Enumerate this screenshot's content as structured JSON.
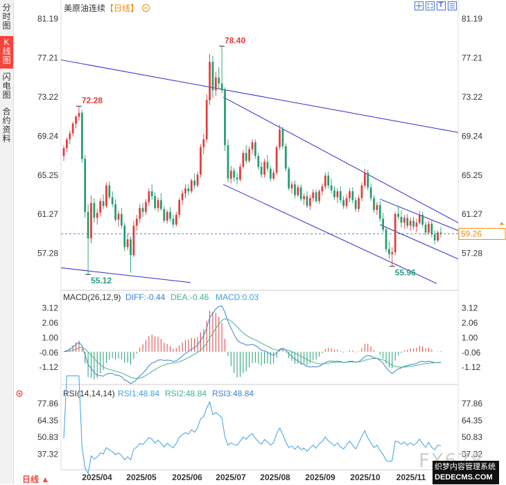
{
  "sidebar": {
    "tabs": [
      {
        "label": "分\n时\n图"
      },
      {
        "label": "K\n线\n图"
      },
      {
        "label": "闪\n电\n图"
      },
      {
        "label": "合\n约\n资\n料"
      }
    ]
  },
  "header": {
    "symbol": "美原油连续",
    "period": "【日线】",
    "zoom_icon": "plus-circle-icon"
  },
  "toolbar": {
    "icons": [
      "move-icon",
      "fit-icon",
      "text-icon",
      "tools-icon"
    ]
  },
  "macd_header": {
    "title": "MACD(26,12,9)",
    "diff": "DIFF:-0.44",
    "dea": "DEA:-0.46",
    "macd": "MACD:0.03"
  },
  "rsi_header": {
    "title": "RSI(14,14,14)",
    "rsi1": "RSI1:48.84",
    "rsi2": "RSI2:48.84",
    "rsi3": "RSI3:48.84"
  },
  "footer": {
    "timeframe": "日线 ▲"
  },
  "watermark": {
    "brand": "FX678",
    "site_name": "织梦内容管理系统",
    "site_url": "DEDECMS.COM"
  },
  "colors": {
    "up": "#e23b3b",
    "down": "#1f9e6e",
    "channel": "#2b2bd3",
    "diff": "#3a7fd6",
    "dea": "#40b48a",
    "rsi": "#3ba0dd",
    "current": "#f08c00"
  },
  "chart_data": [
    {
      "type": "candlestick",
      "title": "美原油连续",
      "period": "日线",
      "y_ticks": [
        "81.19",
        "77.21",
        "73.22",
        "69.24",
        "65.25",
        "61.27",
        "57.28"
      ],
      "ylim": [
        54.0,
        82.4
      ],
      "x_ticks": [
        "2025/04",
        "2025/05",
        "2025/06",
        "2025/07",
        "2025/08",
        "2025/09",
        "2025/10",
        "2025/11"
      ],
      "last_price": "59.26",
      "annotations": [
        {
          "label": "72.28",
          "kind": "high",
          "date": "2025/04/02"
        },
        {
          "label": "78.40",
          "kind": "high",
          "date": "2025/06/23"
        },
        {
          "label": "55.12",
          "kind": "low",
          "date": "2025/04/09"
        },
        {
          "label": "55.96",
          "kind": "low",
          "date": "2025/10/20"
        }
      ],
      "candles": [
        {
          "o": 67.2,
          "h": 68.3,
          "l": 66.7,
          "c": 68.0
        },
        {
          "o": 68.0,
          "h": 69.1,
          "l": 67.6,
          "c": 68.9
        },
        {
          "o": 68.9,
          "h": 69.8,
          "l": 68.4,
          "c": 69.5
        },
        {
          "o": 69.5,
          "h": 70.7,
          "l": 69.2,
          "c": 70.5
        },
        {
          "o": 70.5,
          "h": 71.4,
          "l": 70.0,
          "c": 71.2
        },
        {
          "o": 71.2,
          "h": 72.28,
          "l": 70.8,
          "c": 71.6
        },
        {
          "o": 71.6,
          "h": 71.9,
          "l": 66.5,
          "c": 66.9
        },
        {
          "o": 66.9,
          "h": 67.3,
          "l": 60.9,
          "c": 61.5
        },
        {
          "o": 61.5,
          "h": 62.3,
          "l": 55.12,
          "c": 58.8
        },
        {
          "o": 58.8,
          "h": 63.2,
          "l": 58.3,
          "c": 62.4
        },
        {
          "o": 62.4,
          "h": 62.9,
          "l": 60.4,
          "c": 60.9
        },
        {
          "o": 60.9,
          "h": 61.8,
          "l": 60.2,
          "c": 61.4
        },
        {
          "o": 61.4,
          "h": 62.9,
          "l": 61.0,
          "c": 62.6
        },
        {
          "o": 62.6,
          "h": 63.3,
          "l": 61.8,
          "c": 62.1
        },
        {
          "o": 62.1,
          "h": 64.5,
          "l": 61.9,
          "c": 64.2
        },
        {
          "o": 64.2,
          "h": 64.6,
          "l": 62.8,
          "c": 63.0
        },
        {
          "o": 63.0,
          "h": 63.6,
          "l": 62.0,
          "c": 62.3
        },
        {
          "o": 62.3,
          "h": 62.8,
          "l": 60.5,
          "c": 60.7
        },
        {
          "o": 60.7,
          "h": 61.6,
          "l": 60.0,
          "c": 61.3
        },
        {
          "o": 61.3,
          "h": 61.9,
          "l": 59.8,
          "c": 60.1
        },
        {
          "o": 60.1,
          "h": 60.4,
          "l": 57.5,
          "c": 57.9
        },
        {
          "o": 57.9,
          "h": 59.3,
          "l": 57.6,
          "c": 58.7
        },
        {
          "o": 58.7,
          "h": 59.0,
          "l": 55.3,
          "c": 57.1
        },
        {
          "o": 57.1,
          "h": 60.6,
          "l": 56.9,
          "c": 60.1
        },
        {
          "o": 60.1,
          "h": 61.2,
          "l": 59.6,
          "c": 60.8
        },
        {
          "o": 60.8,
          "h": 62.3,
          "l": 60.4,
          "c": 61.9
        },
        {
          "o": 61.9,
          "h": 62.4,
          "l": 61.0,
          "c": 61.5
        },
        {
          "o": 61.5,
          "h": 62.8,
          "l": 61.2,
          "c": 62.5
        },
        {
          "o": 62.5,
          "h": 63.9,
          "l": 62.1,
          "c": 63.6
        },
        {
          "o": 63.6,
          "h": 64.3,
          "l": 62.7,
          "c": 63.1
        },
        {
          "o": 63.1,
          "h": 63.5,
          "l": 61.7,
          "c": 61.9
        },
        {
          "o": 61.9,
          "h": 63.0,
          "l": 61.5,
          "c": 62.7
        },
        {
          "o": 62.7,
          "h": 63.4,
          "l": 61.6,
          "c": 61.8
        },
        {
          "o": 61.8,
          "h": 62.1,
          "l": 60.4,
          "c": 60.6
        },
        {
          "o": 60.6,
          "h": 61.7,
          "l": 60.3,
          "c": 61.5
        },
        {
          "o": 61.5,
          "h": 62.0,
          "l": 60.5,
          "c": 60.8
        },
        {
          "o": 60.8,
          "h": 61.2,
          "l": 59.9,
          "c": 60.2
        },
        {
          "o": 60.2,
          "h": 61.5,
          "l": 60.0,
          "c": 61.2
        },
        {
          "o": 61.2,
          "h": 62.9,
          "l": 60.9,
          "c": 62.7
        },
        {
          "o": 62.7,
          "h": 63.7,
          "l": 62.2,
          "c": 63.4
        },
        {
          "o": 63.4,
          "h": 64.3,
          "l": 62.9,
          "c": 63.9
        },
        {
          "o": 63.9,
          "h": 64.3,
          "l": 63.2,
          "c": 63.6
        },
        {
          "o": 63.6,
          "h": 64.9,
          "l": 63.4,
          "c": 64.7
        },
        {
          "o": 64.7,
          "h": 65.4,
          "l": 63.9,
          "c": 64.2
        },
        {
          "o": 64.2,
          "h": 65.6,
          "l": 64.0,
          "c": 65.3
        },
        {
          "o": 65.3,
          "h": 68.4,
          "l": 65.0,
          "c": 68.1
        },
        {
          "o": 68.1,
          "h": 69.5,
          "l": 67.4,
          "c": 68.9
        },
        {
          "o": 68.9,
          "h": 73.5,
          "l": 68.6,
          "c": 72.9
        },
        {
          "o": 72.9,
          "h": 77.6,
          "l": 72.4,
          "c": 76.8
        },
        {
          "o": 76.8,
          "h": 77.4,
          "l": 73.1,
          "c": 73.9
        },
        {
          "o": 73.9,
          "h": 75.8,
          "l": 73.3,
          "c": 75.2
        },
        {
          "o": 75.2,
          "h": 76.3,
          "l": 74.0,
          "c": 74.6
        },
        {
          "o": 74.6,
          "h": 78.4,
          "l": 73.6,
          "c": 73.9
        },
        {
          "o": 73.9,
          "h": 74.2,
          "l": 67.7,
          "c": 68.3
        },
        {
          "o": 68.3,
          "h": 68.9,
          "l": 64.5,
          "c": 64.9
        },
        {
          "o": 64.9,
          "h": 66.2,
          "l": 64.4,
          "c": 65.7
        },
        {
          "o": 65.7,
          "h": 66.0,
          "l": 64.6,
          "c": 65.0
        },
        {
          "o": 65.0,
          "h": 65.5,
          "l": 64.3,
          "c": 64.8
        },
        {
          "o": 64.8,
          "h": 66.4,
          "l": 64.6,
          "c": 66.1
        },
        {
          "o": 66.1,
          "h": 67.8,
          "l": 65.9,
          "c": 67.5
        },
        {
          "o": 67.5,
          "h": 68.3,
          "l": 66.4,
          "c": 66.7
        },
        {
          "o": 66.7,
          "h": 68.2,
          "l": 66.5,
          "c": 67.9
        },
        {
          "o": 67.9,
          "h": 68.9,
          "l": 67.4,
          "c": 68.6
        },
        {
          "o": 68.6,
          "h": 68.9,
          "l": 66.9,
          "c": 67.2
        },
        {
          "o": 67.2,
          "h": 67.5,
          "l": 65.8,
          "c": 66.1
        },
        {
          "o": 66.1,
          "h": 66.6,
          "l": 65.0,
          "c": 65.3
        },
        {
          "o": 65.3,
          "h": 66.9,
          "l": 65.0,
          "c": 66.6
        },
        {
          "o": 66.6,
          "h": 67.3,
          "l": 65.6,
          "c": 65.9
        },
        {
          "o": 65.9,
          "h": 66.2,
          "l": 64.6,
          "c": 64.9
        },
        {
          "o": 64.9,
          "h": 65.8,
          "l": 64.7,
          "c": 65.5
        },
        {
          "o": 65.5,
          "h": 68.3,
          "l": 65.3,
          "c": 68.1
        },
        {
          "o": 68.1,
          "h": 70.4,
          "l": 67.8,
          "c": 69.9
        },
        {
          "o": 69.9,
          "h": 70.2,
          "l": 67.9,
          "c": 68.2
        },
        {
          "o": 68.2,
          "h": 68.5,
          "l": 65.6,
          "c": 65.9
        },
        {
          "o": 65.9,
          "h": 66.1,
          "l": 63.7,
          "c": 63.9
        },
        {
          "o": 63.9,
          "h": 64.6,
          "l": 63.4,
          "c": 64.3
        },
        {
          "o": 64.3,
          "h": 64.7,
          "l": 62.9,
          "c": 63.2
        },
        {
          "o": 63.2,
          "h": 64.3,
          "l": 63.0,
          "c": 64.0
        },
        {
          "o": 64.0,
          "h": 64.3,
          "l": 62.6,
          "c": 62.8
        },
        {
          "o": 62.8,
          "h": 63.4,
          "l": 62.2,
          "c": 63.1
        },
        {
          "o": 63.1,
          "h": 63.6,
          "l": 61.9,
          "c": 62.1
        },
        {
          "o": 62.1,
          "h": 63.2,
          "l": 61.7,
          "c": 62.9
        },
        {
          "o": 62.9,
          "h": 63.8,
          "l": 62.5,
          "c": 63.5
        },
        {
          "o": 63.5,
          "h": 63.8,
          "l": 62.4,
          "c": 62.6
        },
        {
          "o": 62.6,
          "h": 63.8,
          "l": 62.3,
          "c": 63.6
        },
        {
          "o": 63.6,
          "h": 64.4,
          "l": 63.2,
          "c": 64.1
        },
        {
          "o": 64.1,
          "h": 65.5,
          "l": 63.8,
          "c": 65.2
        },
        {
          "o": 65.2,
          "h": 65.6,
          "l": 63.9,
          "c": 64.2
        },
        {
          "o": 64.2,
          "h": 64.9,
          "l": 63.4,
          "c": 63.7
        },
        {
          "o": 63.7,
          "h": 64.1,
          "l": 62.7,
          "c": 63.0
        },
        {
          "o": 63.0,
          "h": 63.9,
          "l": 62.4,
          "c": 63.6
        },
        {
          "o": 63.6,
          "h": 64.1,
          "l": 62.4,
          "c": 62.7
        },
        {
          "o": 62.7,
          "h": 63.1,
          "l": 61.8,
          "c": 62.1
        },
        {
          "o": 62.1,
          "h": 63.3,
          "l": 61.8,
          "c": 62.9
        },
        {
          "o": 62.9,
          "h": 63.9,
          "l": 62.5,
          "c": 63.6
        },
        {
          "o": 63.6,
          "h": 64.0,
          "l": 62.4,
          "c": 62.7
        },
        {
          "o": 62.7,
          "h": 63.0,
          "l": 61.5,
          "c": 61.8
        },
        {
          "o": 61.8,
          "h": 63.2,
          "l": 61.5,
          "c": 62.9
        },
        {
          "o": 62.9,
          "h": 64.5,
          "l": 62.6,
          "c": 64.2
        },
        {
          "o": 64.2,
          "h": 65.9,
          "l": 63.9,
          "c": 65.5
        },
        {
          "o": 65.5,
          "h": 65.8,
          "l": 63.7,
          "c": 64.0
        },
        {
          "o": 64.0,
          "h": 64.4,
          "l": 62.6,
          "c": 62.9
        },
        {
          "o": 62.9,
          "h": 63.2,
          "l": 61.4,
          "c": 61.7
        },
        {
          "o": 61.7,
          "h": 62.5,
          "l": 61.2,
          "c": 62.2
        },
        {
          "o": 62.2,
          "h": 62.6,
          "l": 60.5,
          "c": 60.8
        },
        {
          "o": 60.8,
          "h": 61.4,
          "l": 59.4,
          "c": 59.7
        },
        {
          "o": 59.7,
          "h": 60.0,
          "l": 57.4,
          "c": 57.7
        },
        {
          "o": 57.7,
          "h": 58.5,
          "l": 56.7,
          "c": 57.2
        },
        {
          "o": 57.2,
          "h": 57.9,
          "l": 55.96,
          "c": 57.4
        },
        {
          "o": 57.4,
          "h": 61.5,
          "l": 57.1,
          "c": 61.3
        },
        {
          "o": 61.3,
          "h": 62.1,
          "l": 60.7,
          "c": 61.0
        },
        {
          "o": 61.0,
          "h": 61.6,
          "l": 59.9,
          "c": 60.4
        },
        {
          "o": 60.4,
          "h": 61.2,
          "l": 59.8,
          "c": 60.9
        },
        {
          "o": 60.9,
          "h": 61.3,
          "l": 59.8,
          "c": 60.1
        },
        {
          "o": 60.1,
          "h": 60.9,
          "l": 59.6,
          "c": 60.6
        },
        {
          "o": 60.6,
          "h": 61.0,
          "l": 59.7,
          "c": 60.0
        },
        {
          "o": 60.0,
          "h": 60.8,
          "l": 59.4,
          "c": 60.4
        },
        {
          "o": 60.4,
          "h": 61.6,
          "l": 60.2,
          "c": 61.2
        },
        {
          "o": 61.2,
          "h": 61.5,
          "l": 59.9,
          "c": 60.2
        },
        {
          "o": 60.2,
          "h": 60.5,
          "l": 59.1,
          "c": 59.4
        },
        {
          "o": 59.4,
          "h": 60.6,
          "l": 59.2,
          "c": 60.3
        },
        {
          "o": 60.3,
          "h": 60.7,
          "l": 58.9,
          "c": 59.2
        },
        {
          "o": 59.2,
          "h": 59.6,
          "l": 58.2,
          "c": 58.6
        },
        {
          "o": 58.6,
          "h": 59.6,
          "l": 58.4,
          "c": 59.4
        },
        {
          "o": 59.4,
          "h": 59.9,
          "l": 58.9,
          "c": 59.26
        }
      ],
      "trendlines": [
        {
          "name": "long-term-resistance",
          "from": "2025/03/24",
          "to": "2025/11/14"
        },
        {
          "name": "channel-upper",
          "from": "2025/06/25",
          "to": "2025/11/14"
        },
        {
          "name": "channel-lower",
          "from": "2025/06/25",
          "to": "2025/11/11"
        },
        {
          "name": "support-line",
          "from": "2025/03/24",
          "to": "2025/06/18"
        }
      ]
    },
    {
      "type": "macd",
      "title": "MACD(26,12,9)",
      "y_ticks": [
        "3.12",
        "2.06",
        "1.00",
        "-0.06",
        "-1.12"
      ],
      "ylim": [
        -2.1,
        3.5
      ],
      "last": {
        "diff": -0.44,
        "dea": -0.46,
        "macd": 0.03
      }
    },
    {
      "type": "line",
      "title": "RSI(14,14,14)",
      "y_ticks": [
        "77.86",
        "64.35",
        "50.83",
        "37.32"
      ],
      "ylim": [
        26.0,
        82.0
      ],
      "last": {
        "rsi1": 48.84,
        "rsi2": 48.84,
        "rsi3": 48.84
      }
    }
  ]
}
